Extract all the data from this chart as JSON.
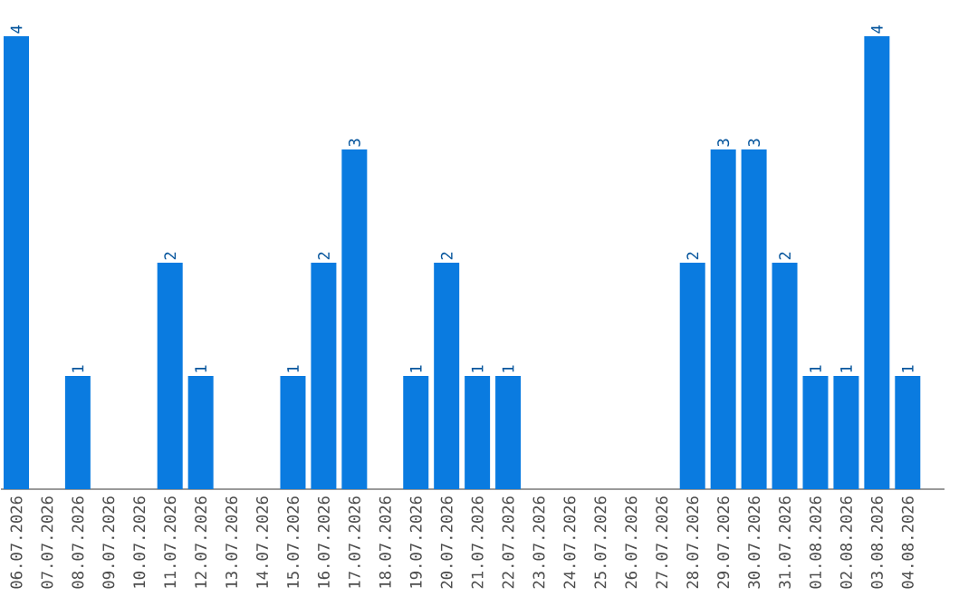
{
  "chart_data": {
    "type": "bar",
    "categories": [
      "06.07.2026",
      "07.07.2026",
      "08.07.2026",
      "09.07.2026",
      "10.07.2026",
      "11.07.2026",
      "12.07.2026",
      "13.07.2026",
      "14.07.2026",
      "15.07.2026",
      "16.07.2026",
      "17.07.2026",
      "18.07.2026",
      "19.07.2026",
      "20.07.2026",
      "21.07.2026",
      "22.07.2026",
      "23.07.2026",
      "24.07.2026",
      "25.07.2026",
      "26.07.2026",
      "27.07.2026",
      "28.07.2026",
      "29.07.2026",
      "30.07.2026",
      "31.07.2026",
      "01.08.2026",
      "02.08.2026",
      "03.08.2026",
      "04.08.2026"
    ],
    "values": [
      4,
      0,
      1,
      0,
      0,
      2,
      1,
      0,
      0,
      1,
      2,
      3,
      0,
      1,
      2,
      1,
      1,
      0,
      0,
      0,
      0,
      0,
      2,
      3,
      3,
      2,
      1,
      1,
      4,
      1
    ],
    "value_labels": [
      "4",
      null,
      "1",
      null,
      null,
      "2",
      "1",
      null,
      null,
      "1",
      "2",
      "3",
      null,
      "1",
      "2",
      "1",
      "1",
      null,
      null,
      null,
      null,
      null,
      "2",
      "3",
      "3",
      "2",
      "1",
      "1",
      "4",
      "1"
    ],
    "color": "#0a7be0",
    "tick_labels": "x"
  }
}
